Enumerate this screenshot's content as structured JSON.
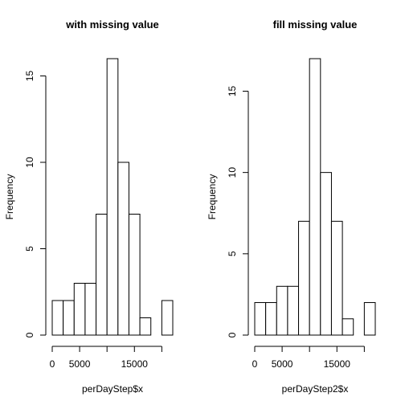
{
  "chart_data": [
    {
      "type": "histogram",
      "title": "with missing value",
      "xlabel": "perDayStep$x",
      "ylabel": "Frequency",
      "bins": [
        0,
        2000,
        4000,
        6000,
        8000,
        10000,
        12000,
        14000,
        16000,
        18000,
        20000,
        22000
      ],
      "counts": [
        2,
        2,
        3,
        3,
        7,
        16,
        10,
        7,
        1,
        0,
        2
      ],
      "xlim": [
        0,
        22000
      ],
      "xticks": [
        0,
        5000,
        {
          "value": 10000,
          "label": null
        },
        15000,
        {
          "value": 20000,
          "label": null
        }
      ],
      "ylim": [
        0,
        16
      ],
      "yticks": [
        0,
        5,
        10,
        15
      ],
      "color": "#ffffff"
    },
    {
      "type": "histogram",
      "title": "fill missing value",
      "xlabel": "perDayStep2$x",
      "ylabel": "Frequency",
      "bins": [
        0,
        2000,
        4000,
        6000,
        8000,
        10000,
        12000,
        14000,
        16000,
        18000,
        20000,
        22000
      ],
      "counts": [
        2,
        2,
        3,
        3,
        7,
        17,
        10,
        7,
        1,
        0,
        2
      ],
      "xlim": [
        0,
        22000
      ],
      "xticks": [
        0,
        5000,
        {
          "value": 10000,
          "label": null
        },
        15000,
        {
          "value": 20000,
          "label": null
        }
      ],
      "ylim": [
        0,
        17
      ],
      "yticks": [
        0,
        5,
        10,
        15
      ],
      "color": "#ffffff"
    }
  ]
}
